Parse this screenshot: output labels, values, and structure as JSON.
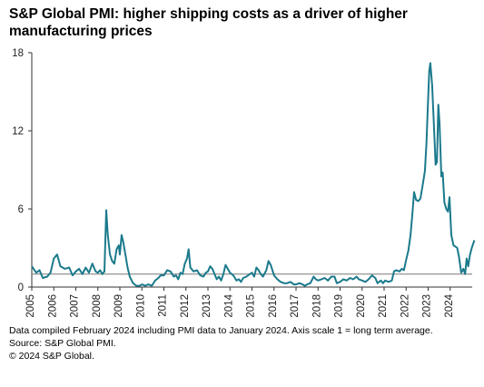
{
  "chart_data": {
    "type": "line",
    "title": "S&P Global PMI: higher shipping costs as a driver of higher manufacturing prices",
    "xlabel": "",
    "ylabel": "",
    "ylim": [
      0,
      18
    ],
    "yticks": [
      0,
      6,
      12,
      18
    ],
    "reference_line": 1,
    "x_ticks": [
      "2005",
      "2006",
      "2007",
      "2008",
      "2009",
      "2010",
      "2011",
      "2012",
      "2013",
      "2014",
      "2015",
      "2016",
      "2017",
      "2018",
      "2019",
      "2020",
      "2021",
      "2022",
      "2023",
      "2024"
    ],
    "grid": false,
    "legend": "none",
    "series_color": "#1b7a8c",
    "reference_color": "#888888",
    "series": [
      {
        "points": [
          [
            2005.0,
            1.6
          ],
          [
            2005.2,
            1.1
          ],
          [
            2005.35,
            1.3
          ],
          [
            2005.5,
            0.7
          ],
          [
            2005.7,
            0.8
          ],
          [
            2005.85,
            1.1
          ],
          [
            2006.0,
            2.2
          ],
          [
            2006.15,
            2.5
          ],
          [
            2006.3,
            1.6
          ],
          [
            2006.5,
            1.4
          ],
          [
            2006.7,
            1.5
          ],
          [
            2006.85,
            0.9
          ],
          [
            2007.0,
            1.2
          ],
          [
            2007.15,
            1.4
          ],
          [
            2007.3,
            1.0
          ],
          [
            2007.45,
            1.5
          ],
          [
            2007.6,
            1.1
          ],
          [
            2007.75,
            1.8
          ],
          [
            2007.9,
            1.2
          ],
          [
            2008.0,
            1.1
          ],
          [
            2008.1,
            1.3
          ],
          [
            2008.2,
            1.0
          ],
          [
            2008.3,
            1.2
          ],
          [
            2008.38,
            5.9
          ],
          [
            2008.45,
            4.0
          ],
          [
            2008.55,
            2.5
          ],
          [
            2008.65,
            2.0
          ],
          [
            2008.75,
            1.8
          ],
          [
            2008.85,
            2.9
          ],
          [
            2008.95,
            3.2
          ],
          [
            2009.0,
            2.5
          ],
          [
            2009.08,
            4.0
          ],
          [
            2009.15,
            3.5
          ],
          [
            2009.25,
            2.5
          ],
          [
            2009.35,
            1.5
          ],
          [
            2009.45,
            0.8
          ],
          [
            2009.6,
            0.3
          ],
          [
            2009.75,
            0.1
          ],
          [
            2009.9,
            0.1
          ],
          [
            2010.0,
            0.2
          ],
          [
            2010.15,
            0.1
          ],
          [
            2010.3,
            0.2
          ],
          [
            2010.45,
            0.1
          ],
          [
            2010.6,
            0.5
          ],
          [
            2010.75,
            0.7
          ],
          [
            2010.85,
            0.9
          ],
          [
            2011.0,
            0.9
          ],
          [
            2011.15,
            1.3
          ],
          [
            2011.3,
            1.2
          ],
          [
            2011.45,
            0.8
          ],
          [
            2011.55,
            0.9
          ],
          [
            2011.65,
            0.6
          ],
          [
            2011.75,
            1.1
          ],
          [
            2011.85,
            1.0
          ],
          [
            2011.95,
            1.8
          ],
          [
            2012.05,
            2.2
          ],
          [
            2012.12,
            2.9
          ],
          [
            2012.2,
            1.5
          ],
          [
            2012.35,
            1.2
          ],
          [
            2012.5,
            1.3
          ],
          [
            2012.65,
            0.9
          ],
          [
            2012.8,
            0.8
          ],
          [
            2012.9,
            1.1
          ],
          [
            2013.0,
            1.2
          ],
          [
            2013.1,
            1.6
          ],
          [
            2013.2,
            1.4
          ],
          [
            2013.3,
            1.0
          ],
          [
            2013.4,
            0.6
          ],
          [
            2013.5,
            0.8
          ],
          [
            2013.6,
            0.5
          ],
          [
            2013.7,
            1.0
          ],
          [
            2013.8,
            1.7
          ],
          [
            2013.9,
            1.4
          ],
          [
            2014.0,
            1.1
          ],
          [
            2014.15,
            0.9
          ],
          [
            2014.3,
            0.5
          ],
          [
            2014.4,
            0.6
          ],
          [
            2014.5,
            0.4
          ],
          [
            2014.6,
            0.7
          ],
          [
            2014.75,
            0.8
          ],
          [
            2014.9,
            1.0
          ],
          [
            2015.0,
            1.1
          ],
          [
            2015.1,
            0.8
          ],
          [
            2015.2,
            1.5
          ],
          [
            2015.3,
            1.3
          ],
          [
            2015.4,
            1.0
          ],
          [
            2015.5,
            0.8
          ],
          [
            2015.65,
            1.3
          ],
          [
            2015.75,
            2.0
          ],
          [
            2015.85,
            1.7
          ],
          [
            2016.0,
            0.9
          ],
          [
            2016.15,
            0.6
          ],
          [
            2016.3,
            0.4
          ],
          [
            2016.45,
            0.3
          ],
          [
            2016.6,
            0.3
          ],
          [
            2016.75,
            0.4
          ],
          [
            2016.9,
            0.2
          ],
          [
            2017.0,
            0.2
          ],
          [
            2017.15,
            0.3
          ],
          [
            2017.3,
            0.2
          ],
          [
            2017.4,
            0.1
          ],
          [
            2017.5,
            0.2
          ],
          [
            2017.65,
            0.3
          ],
          [
            2017.8,
            0.8
          ],
          [
            2017.9,
            0.6
          ],
          [
            2018.0,
            0.5
          ],
          [
            2018.15,
            0.6
          ],
          [
            2018.3,
            0.7
          ],
          [
            2018.45,
            0.5
          ],
          [
            2018.6,
            0.8
          ],
          [
            2018.75,
            0.8
          ],
          [
            2018.85,
            0.3
          ],
          [
            2019.0,
            0.4
          ],
          [
            2019.15,
            0.6
          ],
          [
            2019.3,
            0.5
          ],
          [
            2019.45,
            0.7
          ],
          [
            2019.6,
            0.6
          ],
          [
            2019.75,
            0.8
          ],
          [
            2019.85,
            0.6
          ],
          [
            2020.0,
            0.5
          ],
          [
            2020.15,
            0.4
          ],
          [
            2020.3,
            0.6
          ],
          [
            2020.45,
            0.9
          ],
          [
            2020.6,
            0.7
          ],
          [
            2020.7,
            0.3
          ],
          [
            2020.85,
            0.5
          ],
          [
            2020.95,
            0.3
          ],
          [
            2021.05,
            0.5
          ],
          [
            2021.2,
            0.4
          ],
          [
            2021.35,
            0.5
          ],
          [
            2021.45,
            1.2
          ],
          [
            2021.55,
            1.3
          ],
          [
            2021.7,
            1.2
          ],
          [
            2021.8,
            1.4
          ],
          [
            2021.9,
            1.3
          ],
          [
            2022.0,
            2.1
          ],
          [
            2022.1,
            2.8
          ],
          [
            2022.2,
            4.0
          ],
          [
            2022.28,
            5.5
          ],
          [
            2022.36,
            7.3
          ],
          [
            2022.45,
            6.7
          ],
          [
            2022.55,
            6.6
          ],
          [
            2022.65,
            6.8
          ],
          [
            2022.75,
            7.8
          ],
          [
            2022.85,
            8.9
          ],
          [
            2022.92,
            11.0
          ],
          [
            2023.0,
            14.5
          ],
          [
            2023.05,
            16.6
          ],
          [
            2023.1,
            17.2
          ],
          [
            2023.18,
            15.5
          ],
          [
            2023.26,
            12.5
          ],
          [
            2023.34,
            9.4
          ],
          [
            2023.4,
            9.6
          ],
          [
            2023.46,
            14.0
          ],
          [
            2023.52,
            12.5
          ],
          [
            2023.6,
            8.5
          ],
          [
            2023.66,
            8.8
          ],
          [
            2023.74,
            6.5
          ],
          [
            2023.82,
            6.0
          ],
          [
            2023.9,
            5.8
          ],
          [
            2023.97,
            6.9
          ],
          [
            2024.05,
            4.0
          ],
          [
            2024.15,
            3.2
          ],
          [
            2024.25,
            3.1
          ],
          [
            2024.32,
            3.0
          ],
          [
            2024.4,
            2.3
          ],
          [
            2024.5,
            1.1
          ],
          [
            2024.6,
            1.4
          ],
          [
            2024.68,
            1.0
          ],
          [
            2024.75,
            2.2
          ],
          [
            2024.82,
            1.6
          ],
          [
            2024.9,
            2.5
          ],
          [
            2024.98,
            3.0
          ],
          [
            2025.1,
            3.6
          ]
        ]
      }
    ],
    "notes": [
      "Data compiled February 2024 including PMI data to January 2024. Axis scale 1 = long term average.",
      "Source: S&P Global PMI.",
      "© 2024 S&P Global."
    ]
  }
}
